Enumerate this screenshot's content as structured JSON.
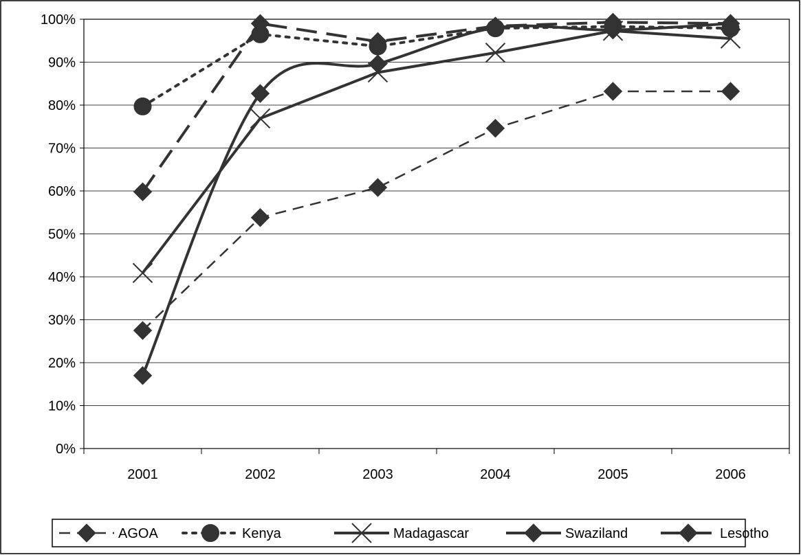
{
  "chart_data": {
    "type": "line",
    "title": "",
    "xlabel": "",
    "ylabel": "",
    "x": [
      "2001",
      "2002",
      "2003",
      "2004",
      "2005",
      "2006"
    ],
    "ylim": [
      0,
      1
    ],
    "yticks": [
      0,
      0.1,
      0.2,
      0.3,
      0.4,
      0.5,
      0.6,
      0.7,
      0.8,
      0.9,
      1.0
    ],
    "ytick_labels": [
      "0%",
      "10%",
      "20%",
      "30%",
      "40%",
      "50%",
      "60%",
      "70%",
      "80%",
      "90%",
      "100%"
    ],
    "grid": "horizontal",
    "legend_position": "bottom",
    "series": [
      {
        "name": "AGOA",
        "values": [
          0.275,
          0.538,
          0.608,
          0.746,
          0.832,
          0.832
        ],
        "color": "#333333",
        "marker": "diamond",
        "dash": "medium-dash"
      },
      {
        "name": "Kenya",
        "values": [
          0.797,
          0.965,
          0.937,
          0.979,
          0.983,
          0.979
        ],
        "color": "#333333",
        "marker": "circle",
        "dash": "dotted"
      },
      {
        "name": "Madagascar",
        "values": [
          0.409,
          0.769,
          0.876,
          0.922,
          0.973,
          0.955
        ],
        "color": "#333333",
        "marker": "x",
        "dash": "solid"
      },
      {
        "name": "Swaziland",
        "values": [
          0.17,
          0.827,
          0.896,
          0.98,
          0.975,
          0.99
        ],
        "color": "#333333",
        "marker": "diamond",
        "dash": "solid-curved"
      },
      {
        "name": "Lesotho",
        "values": [
          0.598,
          0.99,
          0.948,
          0.984,
          0.993,
          0.99
        ],
        "color": "#333333",
        "marker": "diamond",
        "dash": "long-dash"
      }
    ]
  }
}
